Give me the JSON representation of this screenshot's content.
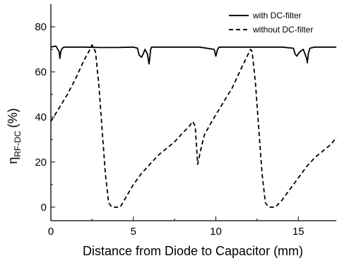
{
  "chart_data": {
    "type": "line",
    "xlabel": "Distance from Diode to Capacitor (mm)",
    "ylabel_main": "η",
    "ylabel_sub": "RF-DC",
    "ylabel_unit": "(%)",
    "xlim": [
      0,
      17.3
    ],
    "ylim": [
      -6,
      90
    ],
    "x_ticks": [
      0,
      5,
      10,
      15
    ],
    "y_ticks": [
      0,
      20,
      40,
      60,
      80
    ],
    "grid": false,
    "legend_position": "top-right",
    "series": [
      {
        "name": "with DC-filter",
        "style": "solid",
        "x": [
          0,
          0.3,
          0.5,
          0.55,
          0.6,
          0.7,
          0.8,
          1.0,
          2.0,
          3.0,
          4.0,
          5.0,
          5.25,
          5.35,
          5.5,
          5.6,
          5.7,
          5.85,
          5.95,
          6.0,
          6.05,
          6.1,
          6.3,
          7.0,
          8.0,
          9.0,
          9.9,
          10.0,
          10.1,
          10.2,
          10.4,
          11.0,
          12.0,
          13.0,
          14.0,
          14.7,
          14.8,
          14.9,
          15.1,
          15.3,
          15.5,
          15.55,
          15.6,
          15.7,
          16.0,
          17.3
        ],
        "y": [
          71,
          71.5,
          69,
          66,
          69,
          70.5,
          71,
          71,
          71,
          70.8,
          70.8,
          71,
          70.5,
          67.5,
          66.5,
          68,
          70,
          68,
          63.5,
          66.5,
          70,
          71,
          71,
          71,
          71,
          71,
          70,
          67,
          70,
          71,
          71,
          71,
          71,
          71,
          71,
          70.5,
          68,
          67,
          69,
          70,
          66,
          64,
          68,
          70.5,
          71,
          71
        ]
      },
      {
        "name": "without DC-filter",
        "style": "dashed",
        "x": [
          0,
          0.5,
          1.0,
          1.5,
          2.0,
          2.3,
          2.5,
          2.7,
          2.9,
          3.1,
          3.3,
          3.5,
          3.7,
          3.9,
          4.2,
          4.6,
          5.0,
          5.5,
          6.0,
          6.5,
          7.0,
          7.5,
          8.0,
          8.4,
          8.6,
          8.75,
          8.9,
          9.1,
          9.3,
          9.6,
          10.0,
          10.5,
          11.0,
          11.5,
          11.9,
          12.1,
          12.2,
          12.4,
          12.6,
          12.8,
          13.0,
          13.2,
          13.6,
          14.0,
          14.5,
          15.0,
          15.5,
          16.0,
          16.5,
          17.0,
          17.3
        ],
        "y": [
          38,
          44,
          50,
          57,
          65,
          69,
          72,
          69,
          55,
          35,
          15,
          2,
          0,
          0,
          0,
          5,
          10,
          15,
          19,
          23,
          26,
          29,
          33,
          36,
          38,
          36,
          19,
          26,
          32,
          36,
          41,
          47,
          53,
          61,
          67,
          70,
          69,
          55,
          35,
          15,
          2,
          0,
          0,
          3,
          8,
          13,
          18,
          22,
          25,
          28,
          31
        ]
      }
    ]
  }
}
